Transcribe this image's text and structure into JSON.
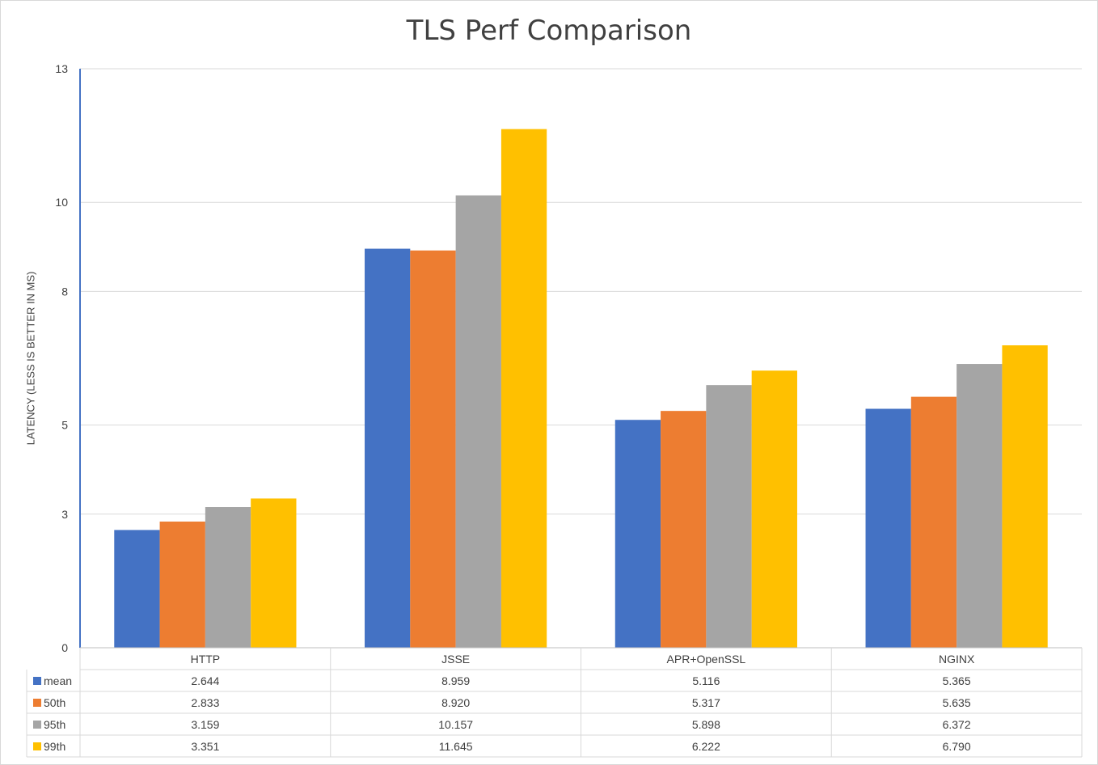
{
  "chart_data": {
    "type": "bar",
    "title": "TLS Perf Comparison",
    "xlabel": "",
    "ylabel": "LATENCY (LESS IS BETTER IN MS)",
    "ylim": [
      0,
      13
    ],
    "yticks": [
      0,
      3,
      5,
      8,
      10,
      13
    ],
    "grid": true,
    "legend": "data-table",
    "categories": [
      "HTTP",
      "JSSE",
      "APR+OpenSSL",
      "NGINX"
    ],
    "series": [
      {
        "name": "mean",
        "color": "#4472C4",
        "values": [
          2.644,
          8.959,
          5.116,
          5.365
        ],
        "labels": [
          "2.644",
          "8.959",
          "5.116",
          "5.365"
        ]
      },
      {
        "name": "50th",
        "color": "#ED7D31",
        "values": [
          2.833,
          8.92,
          5.317,
          5.635
        ],
        "labels": [
          "2.833",
          "8.920",
          "5.317",
          "5.635"
        ]
      },
      {
        "name": "95th",
        "color": "#A5A5A5",
        "values": [
          3.159,
          10.157,
          5.898,
          6.372
        ],
        "labels": [
          "3.159",
          "10.157",
          "5.898",
          "6.372"
        ]
      },
      {
        "name": "99th",
        "color": "#FFC000",
        "values": [
          3.351,
          11.645,
          6.222,
          6.79
        ],
        "labels": [
          "3.351",
          "11.645",
          "6.222",
          "6.790"
        ]
      }
    ]
  }
}
